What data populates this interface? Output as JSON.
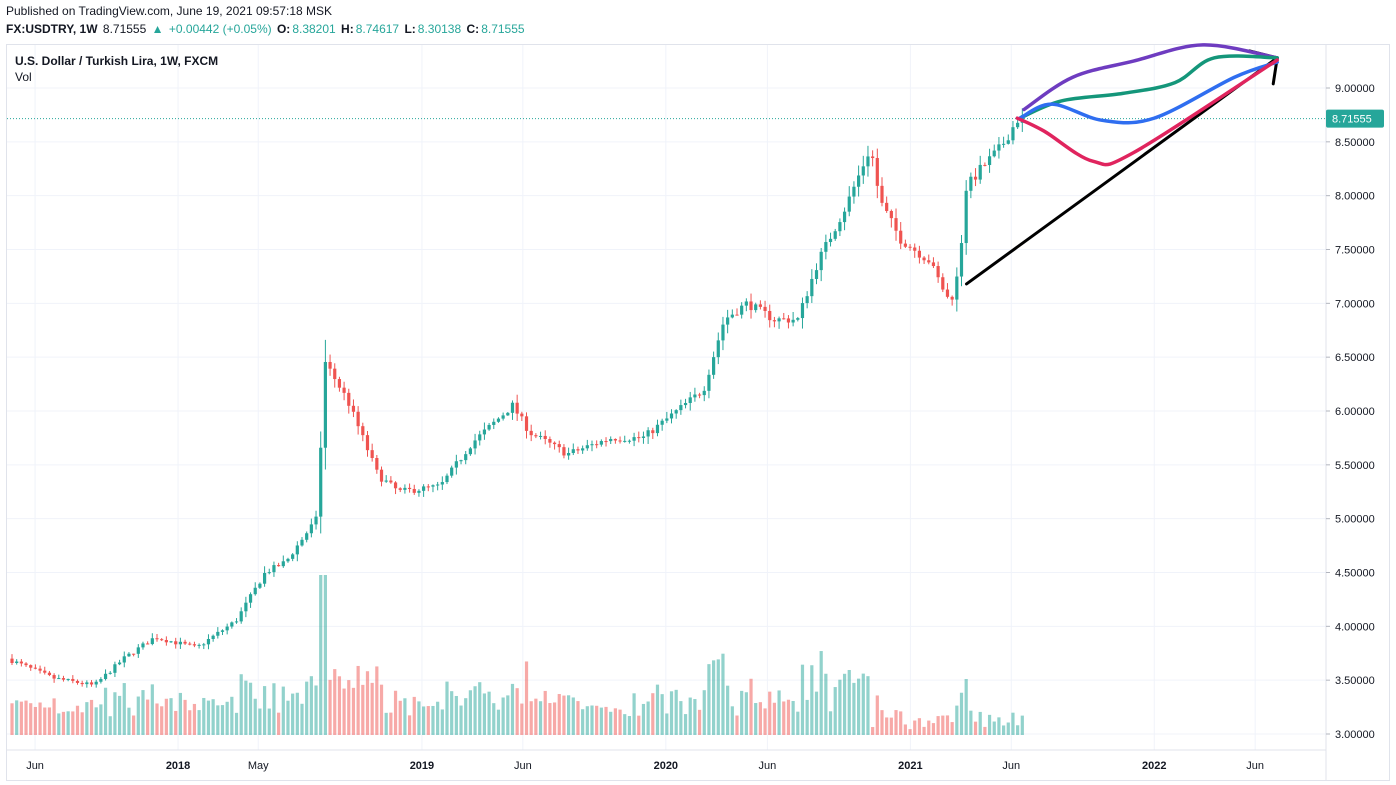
{
  "header": {
    "published": "Published on TradingView.com, June 19, 2021 09:57:18 MSK",
    "symbol": "FX:USDTRY, 1W",
    "last": "8.71555",
    "change": "+0.00442 (+0.05%)",
    "o_label": "O:",
    "o_value": "8.38201",
    "h_label": "H:",
    "h_value": "8.74617",
    "l_label": "L:",
    "l_value": "8.30138",
    "c_label": "C:",
    "c_value": "8.71555"
  },
  "legend": {
    "title": "U.S. Dollar / Turkish Lira, 1W, FXCM",
    "volume": "Vol"
  },
  "colors": {
    "up": "#26a69a",
    "down": "#ef5350",
    "last_price_tag": "#26a69a",
    "purple": "#6e3cc0",
    "teal": "#14967a",
    "blue": "#2f6ef0",
    "pink": "#e0245e",
    "black": "#000000"
  },
  "chart_data": {
    "type": "line",
    "title": "U.S. Dollar / Turkish Lira, 1W, FXCM",
    "last_price": 8.71555,
    "ylim": [
      2.85,
      9.45
    ],
    "y_ticks": [
      "9.00000",
      "8.50000",
      "8.00000",
      "7.50000",
      "7.00000",
      "6.50000",
      "6.00000",
      "5.50000",
      "5.00000",
      "4.50000",
      "4.00000",
      "3.50000",
      "3.00000"
    ],
    "x_ticks": [
      "Jun",
      "2018",
      "May",
      "2019",
      "Jun",
      "2020",
      "Jun",
      "2021",
      "Jun",
      "2022",
      "Jun"
    ],
    "x_tick_dates": [
      "2017-06-01",
      "2018-01-01",
      "2018-05-01",
      "2019-01-01",
      "2019-06-01",
      "2020-01-01",
      "2020-06-01",
      "2021-01-01",
      "2021-06-01",
      "2022-01-01",
      "2022-06-01"
    ],
    "xlim": [
      "2017-04-20",
      "2022-09-15"
    ],
    "series": [
      {
        "name": "",
        "x": [
          "2017-04-24",
          "2017-07-01",
          "2017-09-01",
          "2017-10-15",
          "2017-12-01",
          "2018-02-01",
          "2018-04-01",
          "2018-05-15",
          "2018-06-15",
          "2018-07-31",
          "2018-08-13",
          "2018-09-15",
          "2018-10-31",
          "2018-12-01",
          "2019-02-01",
          "2019-03-20",
          "2019-05-20",
          "2019-06-15",
          "2019-08-10",
          "2019-10-15",
          "2019-12-01",
          "2020-01-01",
          "2020-03-01",
          "2020-04-01",
          "2020-05-05",
          "2020-06-15",
          "2020-07-20",
          "2020-08-20",
          "2020-09-30",
          "2020-11-06",
          "2020-11-20",
          "2020-12-20",
          "2021-02-01",
          "2021-03-05",
          "2021-03-20",
          "2021-03-26",
          "2021-04-20",
          "2021-05-20",
          "2021-06-15"
        ],
        "y": [
          3.7,
          3.52,
          3.45,
          3.7,
          3.9,
          3.8,
          4.05,
          4.5,
          4.6,
          5.0,
          6.45,
          6.1,
          5.4,
          5.25,
          5.3,
          5.7,
          6.05,
          5.8,
          5.6,
          5.75,
          5.75,
          5.9,
          6.2,
          6.85,
          7.0,
          6.85,
          6.85,
          7.4,
          7.9,
          8.45,
          7.95,
          7.6,
          7.4,
          7.0,
          7.35,
          8.05,
          8.25,
          8.45,
          8.72
        ]
      }
    ],
    "last_date": "2021-06-14",
    "volume_max": 4.5,
    "annotations": [
      {
        "color": "#000000",
        "kind": "trend-line-with-arrow",
        "x": [
          "2021-03-26",
          "2022-07-04"
        ],
        "y": [
          7.18,
          9.28
        ]
      },
      {
        "color": "#6e3cc0",
        "kind": "projection",
        "x": [
          "2021-06-20",
          "2021-09-01",
          "2021-12-01",
          "2022-03-15",
          "2022-07-04"
        ],
        "y": [
          8.8,
          9.1,
          9.25,
          9.4,
          9.28
        ]
      },
      {
        "color": "#14967a",
        "kind": "projection",
        "x": [
          "2021-06-14",
          "2021-08-15",
          "2021-11-15",
          "2022-02-01",
          "2022-04-01",
          "2022-07-04"
        ],
        "y": [
          8.72,
          8.88,
          8.95,
          9.05,
          9.28,
          9.28
        ]
      },
      {
        "color": "#2f6ef0",
        "kind": "projection",
        "x": [
          "2021-06-14",
          "2021-08-01",
          "2021-10-15",
          "2022-01-01",
          "2022-05-01",
          "2022-07-04"
        ],
        "y": [
          8.72,
          8.85,
          8.7,
          8.72,
          9.1,
          9.24
        ]
      },
      {
        "color": "#e0245e",
        "kind": "projection",
        "x": [
          "2021-06-10",
          "2021-07-20",
          "2021-10-01",
          "2021-12-01",
          "2022-07-04"
        ],
        "y": [
          8.72,
          8.6,
          8.32,
          8.4,
          9.26
        ]
      }
    ]
  }
}
